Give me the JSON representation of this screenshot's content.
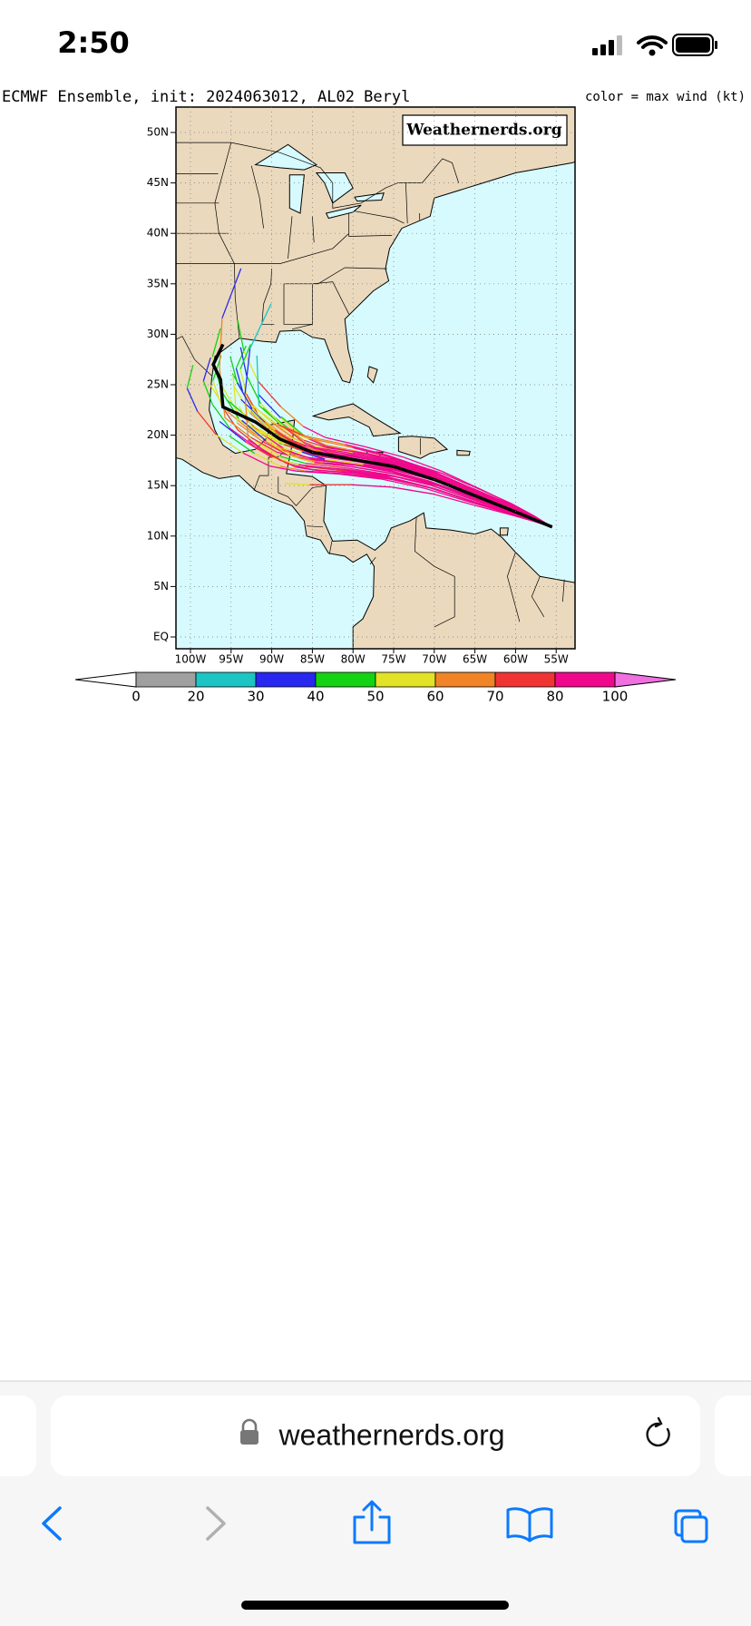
{
  "status_bar": {
    "time": "2:50"
  },
  "map": {
    "title": "ECMWF Ensemble, init: 2024063012, AL02 Beryl",
    "legend_note": "color = max wind (kt)",
    "watermark": "Weathernerds.org",
    "lat_labels": [
      "50N",
      "45N",
      "40N",
      "35N",
      "30N",
      "25N",
      "20N",
      "15N",
      "10N",
      "5N",
      "EQ"
    ],
    "lon_labels": [
      "100W",
      "95W",
      "90W",
      "85W",
      "80W",
      "75W",
      "70W",
      "65W",
      "60W",
      "55W"
    ]
  },
  "colorbar": {
    "labels": [
      "0",
      "20",
      "30",
      "40",
      "50",
      "60",
      "70",
      "80",
      "100"
    ],
    "colors": [
      "#a0a0a0",
      "#1cc4c4",
      "#2828f0",
      "#14d214",
      "#e2e226",
      "#f08426",
      "#f03434",
      "#f0088c"
    ]
  },
  "browser": {
    "url": "weathernerds.org"
  }
}
